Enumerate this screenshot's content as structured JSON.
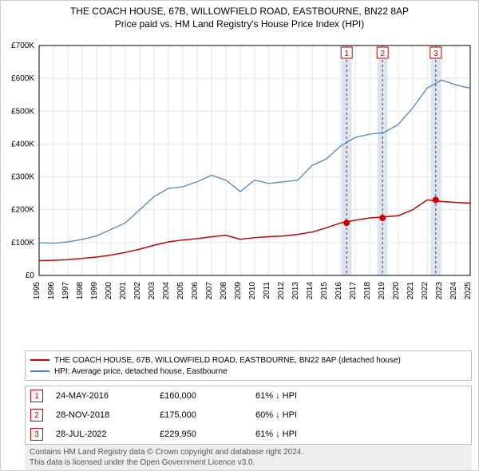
{
  "title": "THE COACH HOUSE, 67B, WILLOWFIELD ROAD, EASTBOURNE, BN22 8AP",
  "subtitle": "Price paid vs. HM Land Registry's House Price Index (HPI)",
  "chart": {
    "type": "line",
    "background_color": "#ffffff",
    "grid_color": "#e5e5e5",
    "axis_color": "#000000",
    "x_years": [
      1995,
      1996,
      1997,
      1998,
      1999,
      2000,
      2001,
      2002,
      2003,
      2004,
      2005,
      2006,
      2007,
      2008,
      2009,
      2010,
      2011,
      2012,
      2013,
      2014,
      2015,
      2016,
      2017,
      2018,
      2019,
      2020,
      2021,
      2022,
      2023,
      2024,
      2025
    ],
    "ylim": [
      0,
      700000
    ],
    "ytick_step": 100000,
    "ytick_labels": [
      "£0",
      "£100K",
      "£200K",
      "£300K",
      "£400K",
      "£500K",
      "£600K",
      "£700K"
    ],
    "series": [
      {
        "name": "property",
        "color": "#cc0000",
        "line_width": 1.5,
        "label": "THE COACH HOUSE, 67B, WILLOWFIELD ROAD, EASTBOURNE, BN22 8AP (detached house)",
        "data": [
          [
            1995,
            45000
          ],
          [
            1996,
            46000
          ],
          [
            1997,
            48000
          ],
          [
            1998,
            52000
          ],
          [
            1999,
            56000
          ],
          [
            2000,
            62000
          ],
          [
            2001,
            70000
          ],
          [
            2002,
            80000
          ],
          [
            2003,
            92000
          ],
          [
            2004,
            102000
          ],
          [
            2005,
            108000
          ],
          [
            2006,
            112000
          ],
          [
            2007,
            118000
          ],
          [
            2008,
            122000
          ],
          [
            2009,
            110000
          ],
          [
            2010,
            115000
          ],
          [
            2011,
            118000
          ],
          [
            2012,
            120000
          ],
          [
            2013,
            125000
          ],
          [
            2014,
            132000
          ],
          [
            2015,
            145000
          ],
          [
            2016,
            160000
          ],
          [
            2017,
            168000
          ],
          [
            2018,
            175000
          ],
          [
            2019,
            178000
          ],
          [
            2020,
            182000
          ],
          [
            2021,
            200000
          ],
          [
            2022,
            229950
          ],
          [
            2023,
            225000
          ],
          [
            2024,
            222000
          ],
          [
            2025,
            220000
          ]
        ],
        "markers": [
          {
            "n": "1",
            "year": 2016.4,
            "value": 160000
          },
          {
            "n": "2",
            "year": 2018.9,
            "value": 175000
          },
          {
            "n": "3",
            "year": 2022.6,
            "value": 229950
          }
        ]
      },
      {
        "name": "hpi",
        "color": "#4a7ebb",
        "line_width": 1.2,
        "label": "HPI: Average price, detached house, Eastbourne",
        "data": [
          [
            1995,
            100000
          ],
          [
            1996,
            98000
          ],
          [
            1997,
            102000
          ],
          [
            1998,
            110000
          ],
          [
            1999,
            120000
          ],
          [
            2000,
            140000
          ],
          [
            2001,
            160000
          ],
          [
            2002,
            200000
          ],
          [
            2003,
            240000
          ],
          [
            2004,
            265000
          ],
          [
            2005,
            270000
          ],
          [
            2006,
            285000
          ],
          [
            2007,
            305000
          ],
          [
            2008,
            290000
          ],
          [
            2009,
            255000
          ],
          [
            2010,
            290000
          ],
          [
            2011,
            280000
          ],
          [
            2012,
            285000
          ],
          [
            2013,
            290000
          ],
          [
            2014,
            335000
          ],
          [
            2015,
            355000
          ],
          [
            2016,
            395000
          ],
          [
            2017,
            420000
          ],
          [
            2018,
            430000
          ],
          [
            2019,
            435000
          ],
          [
            2020,
            460000
          ],
          [
            2021,
            510000
          ],
          [
            2022,
            570000
          ],
          [
            2023,
            595000
          ],
          [
            2024,
            580000
          ],
          [
            2025,
            570000
          ]
        ]
      }
    ],
    "highlight_bands": [
      {
        "year": 2016.4,
        "color": "#d9e6f2"
      },
      {
        "year": 2018.9,
        "color": "#d9e6f2"
      },
      {
        "year": 2022.6,
        "color": "#d9e6f2"
      }
    ],
    "highlight_band_width_years": 0.7,
    "marker_line_color": "#cc0000",
    "marker_line_dash": "3,3",
    "label_fontsize": 10,
    "marker_radius": 4
  },
  "legend": {
    "items": [
      {
        "color": "#cc0000",
        "label": "THE COACH HOUSE, 67B, WILLOWFIELD ROAD, EASTBOURNE, BN22 8AP (detached house)"
      },
      {
        "color": "#4a7ebb",
        "label": "HPI: Average price, detached house, Eastbourne"
      }
    ]
  },
  "sales": [
    {
      "n": "1",
      "date": "24-MAY-2016",
      "price": "£160,000",
      "pct": "61% ↓ HPI"
    },
    {
      "n": "2",
      "date": "28-NOV-2018",
      "price": "£175,000",
      "pct": "60% ↓ HPI"
    },
    {
      "n": "3",
      "date": "28-JUL-2022",
      "price": "£229,950",
      "pct": "61% ↓ HPI"
    }
  ],
  "footer": {
    "line1": "Contains HM Land Registry data © Crown copyright and database right 2024.",
    "line2": "This data is licensed under the Open Government Licence v3.0."
  }
}
